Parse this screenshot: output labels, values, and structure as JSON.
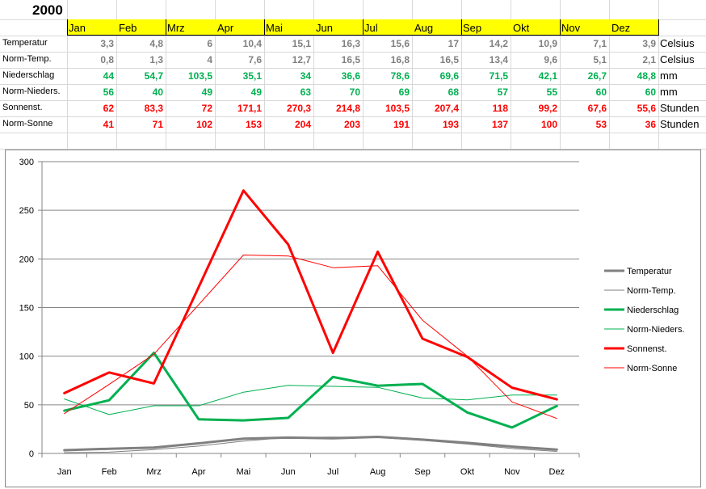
{
  "year": "2000",
  "months": [
    "Jan",
    "Feb",
    "Mrz",
    "Apr",
    "Mai",
    "Jun",
    "Jul",
    "Aug",
    "Sep",
    "Okt",
    "Nov",
    "Dez"
  ],
  "colors": {
    "header_fill": "#ffff00",
    "grey": "#808080",
    "green": "#00b050",
    "red": "#ff0000"
  },
  "table": {
    "rows": [
      {
        "label": "Temperatur",
        "unit": "Celsius",
        "color": "#808080",
        "values": [
          "3,3",
          "4,8",
          "6",
          "10,4",
          "15,1",
          "16,3",
          "15,6",
          "17",
          "14,2",
          "10,9",
          "7,1",
          "3,9"
        ]
      },
      {
        "label": "Norm-Temp.",
        "unit": "Celsius",
        "color": "#808080",
        "values": [
          "0,8",
          "1,3",
          "4",
          "7,6",
          "12,7",
          "16,5",
          "16,8",
          "16,5",
          "13,4",
          "9,6",
          "5,1",
          "2,1"
        ]
      },
      {
        "label": "Niederschlag",
        "unit": "mm",
        "color": "#00b050",
        "values": [
          "44",
          "54,7",
          "103,5",
          "35,1",
          "34",
          "36,6",
          "78,6",
          "69,6",
          "71,5",
          "42,1",
          "26,7",
          "48,8"
        ]
      },
      {
        "label": "Norm-Nieders.",
        "unit": "mm",
        "color": "#00b050",
        "values": [
          "56",
          "40",
          "49",
          "49",
          "63",
          "70",
          "69",
          "68",
          "57",
          "55",
          "60",
          "60"
        ]
      },
      {
        "label": "Sonnenst.",
        "unit": "Stunden",
        "color": "#ff0000",
        "values": [
          "62",
          "83,3",
          "72",
          "171,1",
          "270,3",
          "214,8",
          "103,5",
          "207,4",
          "118",
          "99,2",
          "67,6",
          "55,6"
        ]
      },
      {
        "label": "Norm-Sonne",
        "unit": "Stunden",
        "color": "#ff0000",
        "values": [
          "41",
          "71",
          "102",
          "153",
          "204",
          "203",
          "191",
          "193",
          "137",
          "100",
          "53",
          "36"
        ]
      }
    ]
  },
  "chart_data": {
    "type": "line",
    "categories": [
      "Jan",
      "Feb",
      "Mrz",
      "Apr",
      "Mai",
      "Jun",
      "Jul",
      "Aug",
      "Sep",
      "Okt",
      "Nov",
      "Dez"
    ],
    "ylim": [
      0,
      300
    ],
    "yticks": [
      "0",
      "50",
      "100",
      "150",
      "200",
      "250",
      "300"
    ],
    "grid": true,
    "legend": "right",
    "series": [
      {
        "name": "Temperatur",
        "color": "#808080",
        "width": "thick",
        "values": [
          3.3,
          4.8,
          6,
          10.4,
          15.1,
          16.3,
          15.6,
          17,
          14.2,
          10.9,
          7.1,
          3.9
        ]
      },
      {
        "name": "Norm-Temp.",
        "color": "#808080",
        "width": "thin",
        "values": [
          0.8,
          1.3,
          4,
          7.6,
          12.7,
          16.5,
          16.8,
          16.5,
          13.4,
          9.6,
          5.1,
          2.1
        ]
      },
      {
        "name": "Niederschlag",
        "color": "#00b050",
        "width": "thick",
        "values": [
          44,
          54.7,
          103.5,
          35.1,
          34,
          36.6,
          78.6,
          69.6,
          71.5,
          42.1,
          26.7,
          48.8
        ]
      },
      {
        "name": "Norm-Nieders.",
        "color": "#00b050",
        "width": "thin",
        "values": [
          56,
          40,
          49,
          49,
          63,
          70,
          69,
          68,
          57,
          55,
          60,
          60
        ]
      },
      {
        "name": "Sonnenst.",
        "color": "#ff0000",
        "width": "thick",
        "values": [
          62,
          83.3,
          72,
          171.1,
          270.3,
          214.8,
          103.5,
          207.4,
          118,
          99.2,
          67.6,
          55.6
        ]
      },
      {
        "name": "Norm-Sonne",
        "color": "#ff0000",
        "width": "thin",
        "values": [
          41,
          71,
          102,
          153,
          204,
          203,
          191,
          193,
          137,
          100,
          53,
          36
        ]
      }
    ]
  }
}
